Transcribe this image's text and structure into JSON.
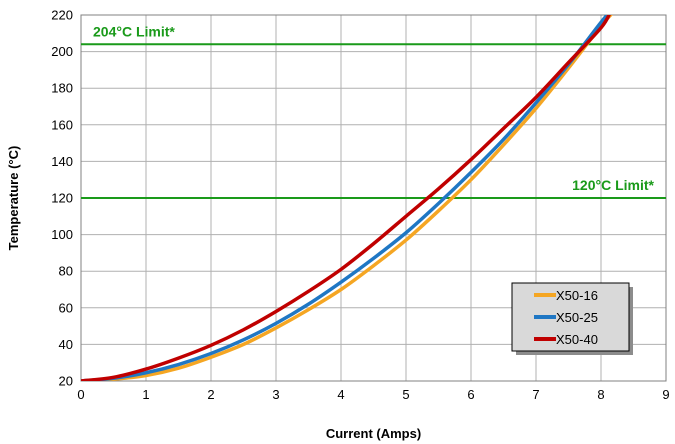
{
  "colors": {
    "grid": "#b0b0b0",
    "limit_line": "#1a9a1a",
    "limit_text": "#1a9a1a",
    "legend_bg": "#d9d9d9"
  },
  "chart_data": {
    "type": "line",
    "title": "",
    "xlabel": "Current (Amps)",
    "ylabel": "Temperature (°C)",
    "xlim": [
      0,
      9
    ],
    "ylim": [
      20,
      220
    ],
    "xticks": [
      0,
      1,
      2,
      3,
      4,
      5,
      6,
      7,
      8,
      9
    ],
    "yticks": [
      20,
      40,
      60,
      80,
      100,
      120,
      140,
      160,
      180,
      200,
      220
    ],
    "grid": true,
    "legend_position": "bottom-right",
    "series": [
      {
        "name": "X50-16",
        "color": "#f5a623",
        "x": [
          0,
          0.5,
          1,
          1.5,
          2,
          2.5,
          3,
          3.5,
          4,
          4.5,
          5,
          5.5,
          6,
          6.5,
          7,
          7.5,
          8,
          8.2
        ],
        "y": [
          20,
          21,
          23,
          27,
          33,
          40,
          49,
          59,
          70,
          83,
          97,
          113,
          130,
          149,
          169,
          191,
          214,
          222
        ]
      },
      {
        "name": "X50-25",
        "color": "#1f77c4",
        "x": [
          0,
          0.5,
          1,
          1.5,
          2,
          2.5,
          3,
          3.5,
          4,
          4.5,
          5,
          5.5,
          6,
          6.5,
          7,
          7.5,
          8,
          8.15
        ],
        "y": [
          20,
          21.5,
          24.5,
          29,
          35,
          42.5,
          51.5,
          62,
          74,
          87,
          101,
          117,
          134,
          152,
          172,
          193,
          216,
          222
        ]
      },
      {
        "name": "X50-40",
        "color": "#c00000",
        "x": [
          0,
          0.5,
          1,
          1.5,
          2,
          2.5,
          3,
          3.5,
          4,
          4.5,
          5,
          5.5,
          6,
          6.5,
          7,
          7.5,
          8,
          8.15
        ],
        "y": [
          20,
          22,
          26.5,
          32.5,
          39.5,
          48,
          58,
          69,
          81,
          95,
          110,
          125,
          141,
          158,
          175,
          194,
          213,
          222
        ]
      }
    ],
    "reference_lines": [
      {
        "y": 204,
        "label": "204°C Limit*",
        "label_align": "left"
      },
      {
        "y": 120,
        "label": "120°C Limit*",
        "label_align": "right"
      }
    ]
  }
}
